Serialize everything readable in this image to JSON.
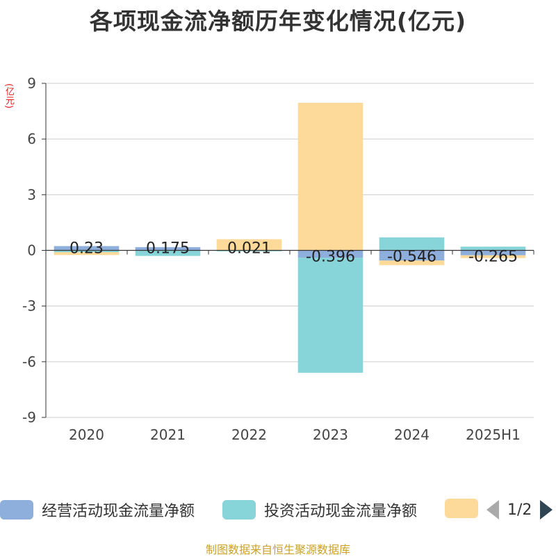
{
  "title": "各项现金流净额历年变化情况(亿元)",
  "unit_label": "(亿元)",
  "legend": {
    "items": [
      {
        "label": "经营活动现金流量净额",
        "color": "#8eaedc"
      },
      {
        "label": "投资活动现金流量净额",
        "color": "#87d5d9"
      },
      {
        "label": "",
        "color": "#fdd99a"
      }
    ],
    "pager": "1/2"
  },
  "source": "制图数据来自恒生聚源数据库",
  "colors": {
    "operating": "#8eaedc",
    "investing": "#87d5d9",
    "financing": "#fdd99a",
    "grid": "#cccccc",
    "axis": "#333333"
  },
  "chart_data": {
    "type": "bar",
    "stacked": true,
    "categories": [
      "2020",
      "2021",
      "2022",
      "2023",
      "2024",
      "2025H1"
    ],
    "series": [
      {
        "name": "经营活动现金流量净额",
        "values": [
          0.23,
          0.175,
          0.021,
          -0.396,
          -0.546,
          -0.265
        ]
      },
      {
        "name": "投资活动现金流量净额",
        "values": [
          -0.1,
          -0.3,
          -0.05,
          -6.2,
          0.7,
          0.2
        ]
      },
      {
        "values": [
          -0.15,
          0.0,
          0.58,
          7.95,
          -0.25,
          -0.15
        ]
      }
    ],
    "data_labels": [
      "0.23",
      "0.175",
      "0.021",
      "-0.396",
      "-0.546",
      "-0.265"
    ],
    "ylim": [
      -9,
      9
    ],
    "yticks": [
      -9,
      -6,
      -3,
      0,
      3,
      6,
      9
    ],
    "grid": true,
    "legend_position": "bottom"
  }
}
